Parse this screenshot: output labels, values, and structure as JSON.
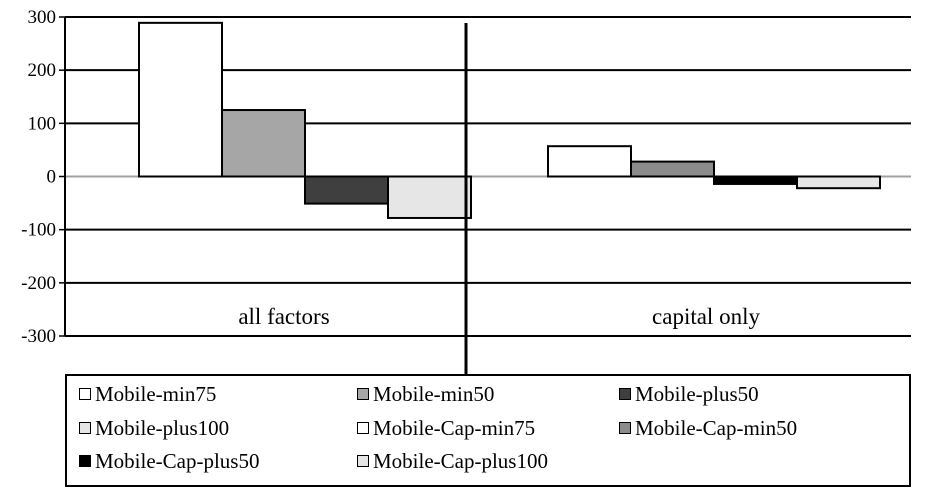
{
  "chart_data": {
    "type": "bar",
    "categories": [
      "all factors",
      "capital only"
    ],
    "series": [
      {
        "name": "Mobile-min75",
        "values": [
          289,
          null
        ],
        "color": "#ffffff"
      },
      {
        "name": "Mobile-min50",
        "values": [
          125,
          null
        ],
        "color": "#a6a6a6"
      },
      {
        "name": "Mobile-plus50",
        "values": [
          -51,
          null
        ],
        "color": "#3f3f3f"
      },
      {
        "name": "Mobile-plus100",
        "values": [
          -78,
          null
        ],
        "color": "#e6e6e6"
      },
      {
        "name": "Mobile-Cap-min75",
        "values": [
          null,
          57
        ],
        "color": "#ffffff"
      },
      {
        "name": "Mobile-Cap-min50",
        "values": [
          null,
          28
        ],
        "color": "#8c8c8c"
      },
      {
        "name": "Mobile-Cap-plus50",
        "values": [
          null,
          -14
        ],
        "color": "#000000"
      },
      {
        "name": "Mobile-Cap-plus100",
        "values": [
          null,
          -22
        ],
        "color": "#e6e6e6"
      }
    ],
    "yticks": [
      300,
      200,
      100,
      0,
      -100,
      -200,
      -300
    ],
    "ylim": [
      -300,
      300
    ],
    "grid": true,
    "legend_position": "bottom"
  }
}
